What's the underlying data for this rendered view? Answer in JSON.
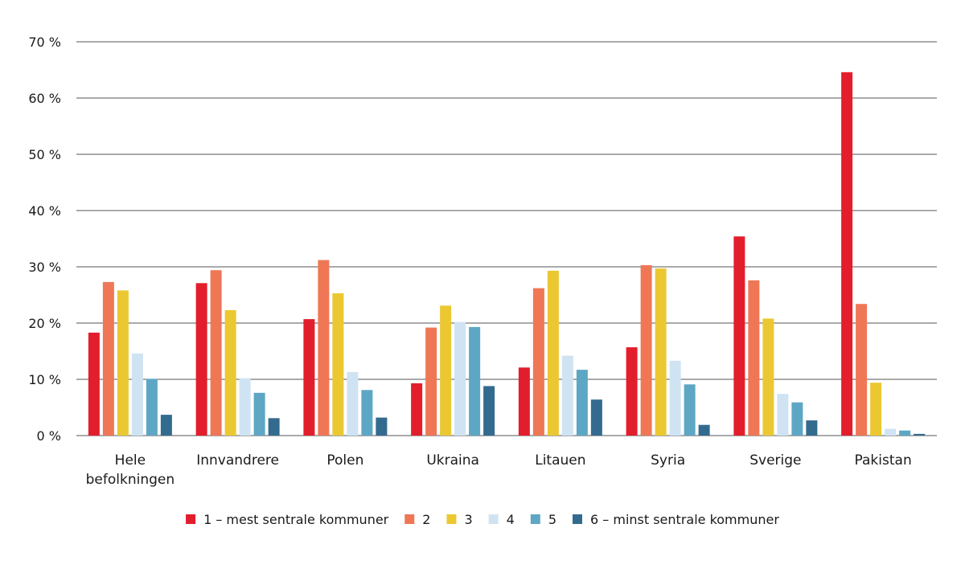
{
  "chart_data": {
    "type": "bar",
    "title": "",
    "xlabel": "",
    "ylabel": "",
    "ylim": [
      0,
      70
    ],
    "y_ticks": [
      0,
      10,
      20,
      30,
      40,
      50,
      60,
      70
    ],
    "y_tick_suffix": " %",
    "grid": true,
    "legend_position": "bottom",
    "categories": [
      [
        "Hele",
        "befolkningen"
      ],
      [
        "Innvandrere"
      ],
      [
        "Polen"
      ],
      [
        "Ukraina"
      ],
      [
        "Litauen"
      ],
      [
        "Syria"
      ],
      [
        "Sverige"
      ],
      [
        "Pakistan"
      ]
    ],
    "series": [
      {
        "name": "1 – mest sentrale kommuner",
        "color": "#e31e2c",
        "values": [
          18.3,
          27.1,
          20.7,
          9.3,
          12.1,
          15.7,
          35.4,
          64.6
        ]
      },
      {
        "name": "2",
        "color": "#ef7756",
        "values": [
          27.3,
          29.4,
          31.2,
          19.2,
          26.2,
          30.3,
          27.6,
          23.4
        ]
      },
      {
        "name": "3",
        "color": "#ebc832",
        "values": [
          25.8,
          22.3,
          25.3,
          23.1,
          29.3,
          29.7,
          20.8,
          9.4
        ]
      },
      {
        "name": "4",
        "color": "#cfe3f3",
        "values": [
          14.6,
          10.2,
          11.3,
          20.2,
          14.2,
          13.3,
          7.4,
          1.2
        ]
      },
      {
        "name": "5",
        "color": "#5ea7c4",
        "values": [
          10.1,
          7.6,
          8.1,
          19.3,
          11.7,
          9.1,
          5.9,
          0.9
        ]
      },
      {
        "name": "6 – minst sentrale kommuner",
        "color": "#336b8e",
        "values": [
          3.7,
          3.1,
          3.2,
          8.8,
          6.4,
          1.9,
          2.7,
          0.3
        ]
      }
    ]
  }
}
